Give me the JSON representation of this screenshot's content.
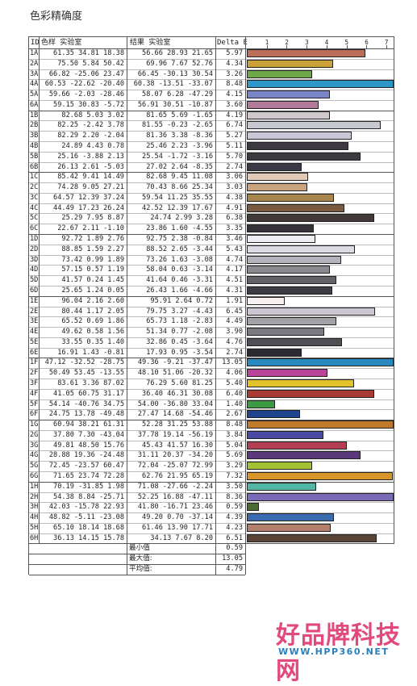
{
  "page": {
    "title": "色彩精确度"
  },
  "table": {
    "headers": {
      "id": "ID",
      "reference": "色样 实验室",
      "result": "结果 实验室",
      "delta_e": "Delta E"
    },
    "scale_ticks": [
      "1",
      "2",
      "3",
      "4",
      "5",
      "6",
      "7"
    ],
    "rows": [
      {
        "id": "1A",
        "ref": "61.35  34.81  18.38",
        "res": "56.66  28.93  21.65",
        "de": "5.97",
        "color": "#b96f5a"
      },
      {
        "id": "2A",
        "ref": "75.50   5.84  50.42",
        "res": "69.96   7.67  52.76",
        "de": "4.34",
        "color": "#caa23a"
      },
      {
        "id": "3A",
        "ref": "66.82 -25.06  23.47",
        "res": "66.45 -30.13  30.54",
        "de": "3.26",
        "color": "#6fa848"
      },
      {
        "id": "4A",
        "ref": "60.53 -22.62 -20.40",
        "res": "60.38 -13.51 -33.07",
        "de": "8.48",
        "color": "#2c97c8"
      },
      {
        "id": "5A",
        "ref": "59.66  -2.03 -28.46",
        "res": "58.07   6.28 -47.29",
        "de": "4.15",
        "color": "#7a86c8"
      },
      {
        "id": "6A",
        "ref": "59.15  30.83  -5.72",
        "res": "56.91  30.51 -10.87",
        "de": "3.60",
        "color": "#b27a98"
      },
      {
        "id": "1B",
        "ref": "82.68   5.03   3.02",
        "res": "81.65   5.69  -1.65",
        "de": "4.19",
        "color": "#d0c8cc"
      },
      {
        "id": "2B",
        "ref": "82.25  -2.42   3.78",
        "res": "81.55  -0.23  -2.65",
        "de": "6.74",
        "color": "#c8c8d0"
      },
      {
        "id": "3B",
        "ref": "82.29   2.20  -2.04",
        "res": "81.36   3.38  -8.36",
        "de": "5.27",
        "color": "#c9c8d6"
      },
      {
        "id": "4B",
        "ref": "24.89   4.43   0.78",
        "res": "25.46   2.23  -3.96",
        "de": "5.11",
        "color": "#3c3a40"
      },
      {
        "id": "5B",
        "ref": "25.16  -3.88   2.13",
        "res": "25.54  -1.72  -3.16",
        "de": "5.70",
        "color": "#3a3c40"
      },
      {
        "id": "6B",
        "ref": "26.13   2.61  -5.03",
        "res": "27.02   2.64  -8.35",
        "de": "2.74",
        "color": "#3a3a46"
      },
      {
        "id": "1C",
        "ref": "85.42   9.41  14.49",
        "res": "82.68   9.45  11.08",
        "de": "3.06",
        "color": "#e2c9b8"
      },
      {
        "id": "2C",
        "ref": "74.28   9.05  27.21",
        "res": "70.43   8.66  25.34",
        "de": "3.03",
        "color": "#c8a47e"
      },
      {
        "id": "3C",
        "ref": "64.57  12.39  37.24",
        "res": "59.54  11.25  35.55",
        "de": "4.38",
        "color": "#a8864e"
      },
      {
        "id": "4C",
        "ref": "44.49  17.23  26.24",
        "res": "42.52  12.39  17.67",
        "de": "4.91",
        "color": "#7a5a40"
      },
      {
        "id": "5C",
        "ref": "25.29   7.95   8.87",
        "res": "24.74   2.99   3.28",
        "de": "6.38",
        "color": "#423a38"
      },
      {
        "id": "6C",
        "ref": "22.67   2.11  -1.10",
        "res": "23.86   1.60  -4.55",
        "de": "3.35",
        "color": "#36343a"
      },
      {
        "id": "1D",
        "ref": "92.72   1.89   2.76",
        "res": "92.75   2.38  -0.84",
        "de": "3.46",
        "color": "#ececf2"
      },
      {
        "id": "2D",
        "ref": "88.85   1.59   2.27",
        "res": "88.52   2.65  -3.44",
        "de": "5.43",
        "color": "#dcdae2"
      },
      {
        "id": "3D",
        "ref": "73.42   0.99   1.89",
        "res": "73.26   1.63  -3.08",
        "de": "4.74",
        "color": "#b4b2ba"
      },
      {
        "id": "4D",
        "ref": "57.15   0.57   1.19",
        "res": "58.04   0.63  -3.14",
        "de": "4.17",
        "color": "#8a8a90"
      },
      {
        "id": "5D",
        "ref": "41.57   0.24   1.45",
        "res": "41.64   0.46  -3.31",
        "de": "4.51",
        "color": "#626266"
      },
      {
        "id": "6D",
        "ref": "25.65   1.24   0.05",
        "res": "26.43   1.66  -4.66",
        "de": "4.31",
        "color": "#3c3c42"
      },
      {
        "id": "1E",
        "ref": "96.04   2.16   2.60",
        "res": "95.91   2.64   0.72",
        "de": "1.91",
        "color": "#f6f0f0"
      },
      {
        "id": "2E",
        "ref": "80.44   1.17   2.05",
        "res": "79.75   3.27  -4.43",
        "de": "6.45",
        "color": "#ccc6d2"
      },
      {
        "id": "3E",
        "ref": "65.52   0.69   1.86",
        "res": "65.73   1.18  -2.83",
        "de": "4.49",
        "color": "#a2a2a8"
      },
      {
        "id": "4E",
        "ref": "49.62   0.58   1.56",
        "res": "51.34   0.77  -2.08",
        "de": "3.90",
        "color": "#7a7a80"
      },
      {
        "id": "5E",
        "ref": "33.55   0.35   1.40",
        "res": "32.86   0.45  -3.64",
        "de": "4.76",
        "color": "#4e4e54"
      },
      {
        "id": "6E",
        "ref": "16.91   1.43  -0.81",
        "res": "17.93   0.95  -3.54",
        "de": "2.74",
        "color": "#2a2a30"
      },
      {
        "id": "1F",
        "ref": "47.12 -32.52 -28.75",
        "res": "49.36  -9.21 -37.47",
        "de": "13.05",
        "color": "#2a8ac0"
      },
      {
        "id": "2F",
        "ref": "50.49  53.45 -13.55",
        "res": "48.10  51.06 -20.32",
        "de": "4.06",
        "color": "#b8449a"
      },
      {
        "id": "3F",
        "ref": "83.61   3.36  87.02",
        "res": "76.29   5.60  81.25",
        "de": "5.40",
        "color": "#e2c22a"
      },
      {
        "id": "4F",
        "ref": "41.05  60.75  31.17",
        "res": "36.40  46.31  30.08",
        "de": "6.40",
        "color": "#a83a36"
      },
      {
        "id": "5F",
        "ref": "54.14 -40.76  34.75",
        "res": "54.00 -36.80  33.04",
        "de": "1.40",
        "color": "#3c9a44"
      },
      {
        "id": "6F",
        "ref": "24.75  13.78 -49.48",
        "res": "27.47  14.68 -54.46",
        "de": "2.67",
        "color": "#1e448e"
      },
      {
        "id": "1G",
        "ref": "60.94  38.21  61.31",
        "res": "52.28  31.25  53.88",
        "de": "8.48",
        "color": "#c07a2c"
      },
      {
        "id": "2G",
        "ref": "37.80   7.30 -43.04",
        "res": "37.78  19.14 -56.19",
        "de": "3.84",
        "color": "#4a4aa2"
      },
      {
        "id": "3G",
        "ref": "49.81  48.50  15.76",
        "res": "45.43  41.57  16.30",
        "de": "5.04",
        "color": "#b43e52"
      },
      {
        "id": "4G",
        "ref": "28.88  19.36 -24.48",
        "res": "31.11  20.37 -34.20",
        "de": "5.69",
        "color": "#5a3a7a"
      },
      {
        "id": "5G",
        "ref": "72.45 -23.57  60.47",
        "res": "72.04 -25.07  72.99",
        "de": "3.29",
        "color": "#a2c232"
      },
      {
        "id": "6G",
        "ref": "71.65  23.74  72.28",
        "res": "62.76  21.95  65.19",
        "de": "7.32",
        "color": "#d89628"
      },
      {
        "id": "1H",
        "ref": "70.19 -31.85   1.98",
        "res": "71.08 -27.66  -2.24",
        "de": "3.50",
        "color": "#52b6a4"
      },
      {
        "id": "2H",
        "ref": "54.38   8.84 -25.71",
        "res": "52.25  16.88 -47.11",
        "de": "8.36",
        "color": "#7a6ab8"
      },
      {
        "id": "3H",
        "ref": "42.03 -15.78  22.93",
        "res": "41.80 -16.71  23.46",
        "de": "0.59",
        "color": "#4a6a30"
      },
      {
        "id": "4H",
        "ref": "48.82  -5.11 -23.08",
        "res": "49.20   0.70 -37.14",
        "de": "4.39",
        "color": "#3a6ab0"
      },
      {
        "id": "5H",
        "ref": "65.10  18.14  18.68",
        "res": "61.46  13.90  17.71",
        "de": "4.23",
        "color": "#b2806c"
      },
      {
        "id": "6H",
        "ref": "36.13  14.15  15.78",
        "res": "34.13   7.67   8.20",
        "de": "6.51",
        "color": "#5a4438"
      }
    ],
    "summary": [
      {
        "label": "最小值",
        "value": "0.59"
      },
      {
        "label": "最大值:",
        "value": "13.05"
      },
      {
        "label": "平均值:",
        "value": "4.79"
      }
    ]
  },
  "watermark": {
    "text_cn": "好品牌科技网",
    "url": "WWW.HPP360.NET"
  }
}
